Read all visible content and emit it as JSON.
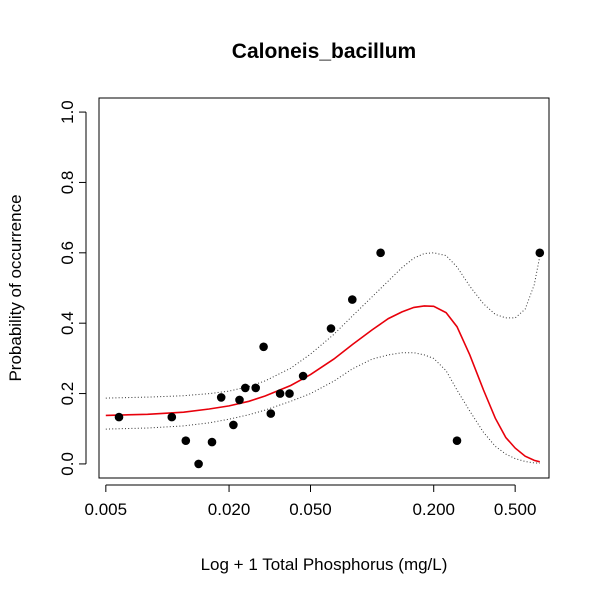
{
  "chart_data": {
    "type": "scatter",
    "title": "Caloneis_bacillum",
    "xlabel": "Log + 1 Total Phosphorus (mg/L)",
    "ylabel": "Probability of occurrence",
    "x_scale": "log",
    "xlim": [
      0.005,
      0.7
    ],
    "ylim": [
      0,
      1
    ],
    "x_ticks": [
      0.005,
      0.02,
      0.05,
      0.2,
      0.5
    ],
    "x_tick_labels": [
      "0.005",
      "0.020",
      "0.050",
      "0.200",
      "0.500"
    ],
    "y_ticks": [
      0,
      0.2,
      0.4,
      0.6,
      0.8,
      1.0
    ],
    "y_tick_labels": [
      "0.0",
      "0.2",
      "0.4",
      "0.6",
      "0.8",
      "1.0"
    ],
    "grid": false,
    "colors": {
      "fit": "#e8000b",
      "ci": "#333333",
      "points": "#000000"
    },
    "points": {
      "x": [
        0.0058,
        0.0105,
        0.0123,
        0.0142,
        0.0165,
        0.0183,
        0.021,
        0.0225,
        0.024,
        0.027,
        0.0295,
        0.032,
        0.0355,
        0.0395,
        0.046,
        0.063,
        0.08,
        0.11,
        0.26,
        0.66
      ],
      "y": [
        0.133,
        0.133,
        0.066,
        0.0,
        0.062,
        0.189,
        0.111,
        0.182,
        0.216,
        0.216,
        0.333,
        0.143,
        0.2,
        0.2,
        0.25,
        0.385,
        0.467,
        0.6,
        0.066,
        0.6
      ]
    },
    "series": [
      {
        "role": "fit",
        "x": [
          0.005,
          0.008,
          0.012,
          0.016,
          0.02,
          0.025,
          0.03,
          0.04,
          0.05,
          0.065,
          0.08,
          0.1,
          0.12,
          0.14,
          0.16,
          0.18,
          0.2,
          0.23,
          0.26,
          0.3,
          0.35,
          0.4,
          0.45,
          0.5,
          0.56,
          0.62,
          0.66
        ],
        "y": [
          0.138,
          0.141,
          0.147,
          0.156,
          0.165,
          0.178,
          0.193,
          0.223,
          0.254,
          0.298,
          0.339,
          0.381,
          0.413,
          0.432,
          0.445,
          0.449,
          0.448,
          0.43,
          0.39,
          0.31,
          0.21,
          0.13,
          0.075,
          0.045,
          0.022,
          0.01,
          0.006
        ]
      },
      {
        "role": "upper-ci",
        "x": [
          0.005,
          0.008,
          0.012,
          0.016,
          0.02,
          0.025,
          0.03,
          0.04,
          0.05,
          0.065,
          0.08,
          0.1,
          0.12,
          0.14,
          0.16,
          0.18,
          0.2,
          0.23,
          0.26,
          0.3,
          0.35,
          0.4,
          0.45,
          0.5,
          0.56,
          0.62,
          0.66
        ],
        "y": [
          0.187,
          0.19,
          0.194,
          0.2,
          0.207,
          0.22,
          0.236,
          0.272,
          0.312,
          0.368,
          0.42,
          0.475,
          0.52,
          0.558,
          0.585,
          0.598,
          0.6,
          0.592,
          0.56,
          0.505,
          0.455,
          0.425,
          0.415,
          0.415,
          0.44,
          0.51,
          0.59
        ]
      },
      {
        "role": "lower-ci",
        "x": [
          0.005,
          0.008,
          0.012,
          0.016,
          0.02,
          0.025,
          0.03,
          0.04,
          0.05,
          0.065,
          0.08,
          0.1,
          0.12,
          0.14,
          0.16,
          0.18,
          0.2,
          0.23,
          0.26,
          0.3,
          0.35,
          0.4,
          0.45,
          0.5,
          0.56,
          0.62,
          0.66
        ],
        "y": [
          0.099,
          0.102,
          0.108,
          0.117,
          0.127,
          0.14,
          0.153,
          0.178,
          0.2,
          0.235,
          0.27,
          0.298,
          0.31,
          0.316,
          0.316,
          0.31,
          0.3,
          0.265,
          0.21,
          0.15,
          0.09,
          0.05,
          0.028,
          0.015,
          0.007,
          0.003,
          0.002
        ]
      }
    ]
  }
}
